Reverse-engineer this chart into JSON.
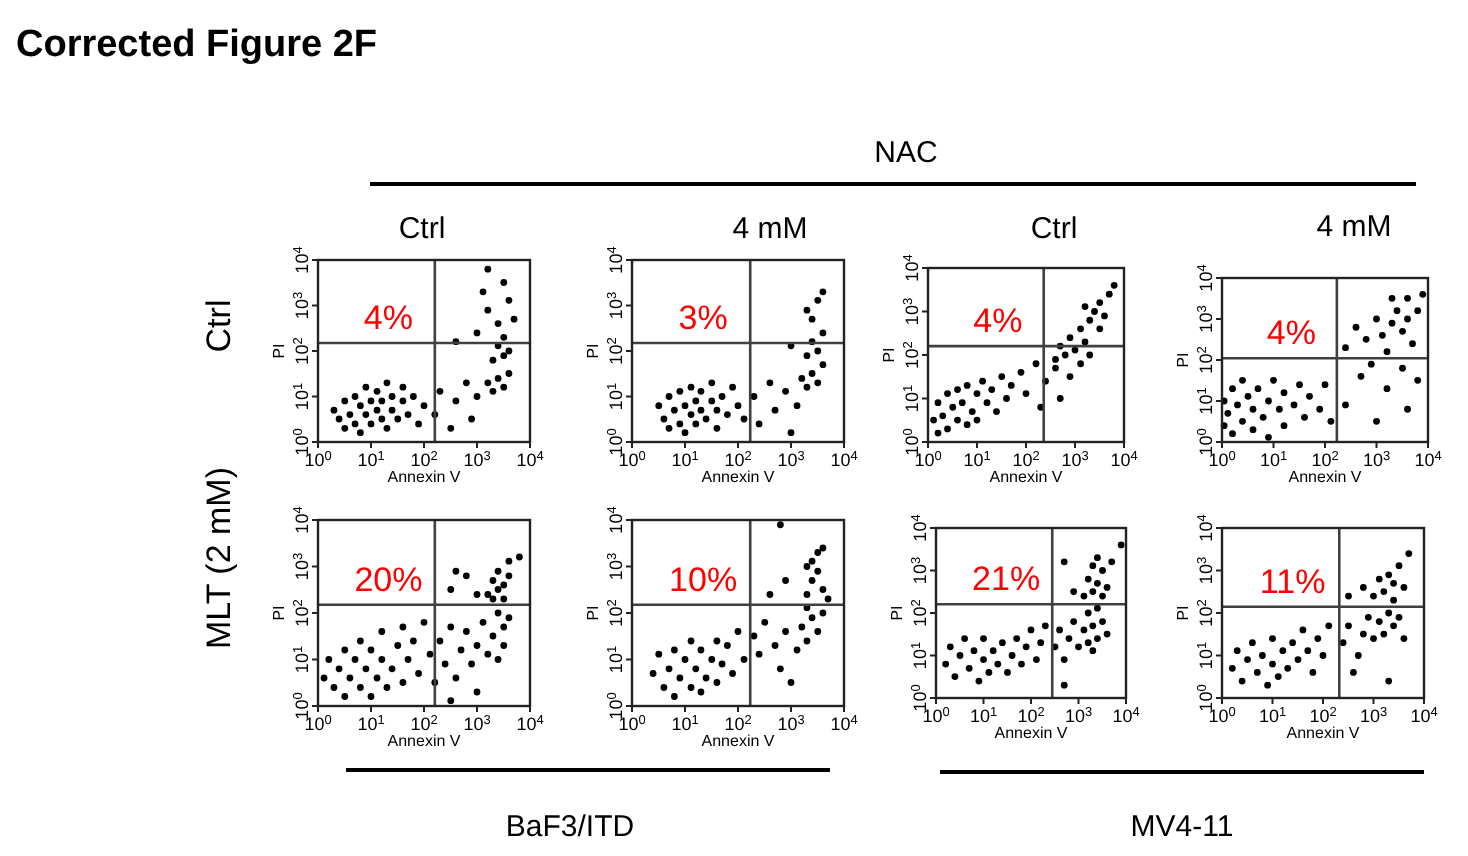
{
  "chart_data": [
    {
      "type": "other",
      "title": "Corrected Figure 2F",
      "annotations": [
        "NAC",
        "Ctrl",
        "4 mM",
        "Ctrl",
        "4 mM",
        "Ctrl",
        "MLT (2 mM)",
        "BaF3/ITD",
        "MV4-11"
      ]
    },
    {
      "type": "scatter",
      "xlabel": "Annexin V",
      "ylabel": "PI",
      "log": "xy",
      "marker": "circle",
      "color": "#000000",
      "xlim": [
        1,
        10000
      ],
      "ylim": [
        1,
        10000
      ],
      "xticks": [
        {
          "value": 1,
          "label": "10$^{0}$"
        },
        {
          "value": 10,
          "label": "10$^{1}$"
        },
        {
          "value": 100,
          "label": "10$^{2}$"
        },
        {
          "value": 1000,
          "label": "10$^{3}$"
        },
        {
          "value": 10000,
          "label": "10$^{4}$"
        }
      ],
      "yticks": [
        {
          "value": 1,
          "label": "10$^{0}$"
        },
        {
          "value": 10,
          "label": "10$^{1}$"
        },
        {
          "value": 100,
          "label": "10$^{2}$"
        },
        {
          "value": 1000,
          "label": "10$^{3}$"
        },
        {
          "value": 10000,
          "label": "10$^{4}$"
        }
      ],
      "ref_lines": [
        {
          "axis": "x",
          "value": 160,
          "color": "#404040"
        },
        {
          "axis": "y",
          "value": 150,
          "color": "#404040"
        }
      ],
      "annotations": [
        "4%"
      ],
      "x": [
        2,
        2.5,
        3.2,
        3.2,
        4,
        5,
        5,
        6.3,
        6.3,
        8,
        8,
        10,
        10,
        13,
        13,
        16,
        16,
        20,
        20,
        25,
        25,
        32,
        40,
        40,
        50,
        63,
        79,
        100,
        160,
        200,
        320,
        400,
        630,
        790,
        1000,
        1600,
        2000,
        2500,
        3200,
        4000,
        2000,
        2500,
        3200,
        3200,
        4000,
        2500,
        1600,
        4000,
        3200,
        1300,
        5000,
        1000,
        400,
        1600
      ],
      "values": [
        5,
        3.2,
        8,
        2,
        4,
        10,
        2.5,
        6.3,
        1.6,
        16,
        4,
        8,
        2.5,
        5,
        13,
        3.2,
        8,
        20,
        2,
        5,
        10,
        3.2,
        8,
        16,
        4,
        10,
        2.5,
        6.3,
        4,
        13,
        2,
        8,
        20,
        3.2,
        10,
        20,
        13,
        25,
        16,
        32,
        63,
        130,
        79,
        200,
        100,
        400,
        790,
        1300,
        3200,
        2000,
        500,
        250,
        160,
        6300
      ]
    },
    {
      "type": "scatter",
      "xlabel": "Annexin V",
      "ylabel": "PI",
      "log": "xy",
      "marker": "circle",
      "color": "#000000",
      "xlim": [
        1,
        10000
      ],
      "ylim": [
        1,
        10000
      ],
      "xticks": [
        {
          "value": 1,
          "label": "10$^{0}$"
        },
        {
          "value": 10,
          "label": "10$^{1}$"
        },
        {
          "value": 100,
          "label": "10$^{2}$"
        },
        {
          "value": 1000,
          "label": "10$^{3}$"
        },
        {
          "value": 10000,
          "label": "10$^{4}$"
        }
      ],
      "yticks": [
        {
          "value": 1,
          "label": "10$^{0}$"
        },
        {
          "value": 10,
          "label": "10$^{1}$"
        },
        {
          "value": 100,
          "label": "10$^{2}$"
        },
        {
          "value": 1000,
          "label": "10$^{3}$"
        },
        {
          "value": 10000,
          "label": "10$^{4}$"
        }
      ],
      "ref_lines": [
        {
          "axis": "x",
          "value": 170,
          "color": "#404040"
        },
        {
          "axis": "y",
          "value": 150,
          "color": "#404040"
        }
      ],
      "annotations": [
        "3%"
      ],
      "x": [
        3.2,
        4,
        5,
        5,
        6.3,
        8,
        8,
        10,
        10,
        13,
        13,
        16,
        16,
        20,
        20,
        25,
        32,
        32,
        40,
        40,
        50,
        63,
        79,
        100,
        130,
        200,
        250,
        400,
        500,
        790,
        1000,
        1300,
        1600,
        2000,
        2500,
        3200,
        4000,
        2000,
        2500,
        3200,
        4000,
        2500,
        3200,
        4000,
        2000,
        1000
      ],
      "values": [
        6.3,
        3.2,
        10,
        2,
        5,
        13,
        2.5,
        6.3,
        1.6,
        16,
        4,
        8,
        2.5,
        5,
        13,
        3.2,
        8,
        20,
        2,
        5,
        10,
        4,
        16,
        6.3,
        3.2,
        10,
        2.5,
        20,
        5,
        13,
        1.6,
        6.3,
        25,
        16,
        32,
        20,
        50,
        79,
        160,
        100,
        250,
        500,
        1300,
        2000,
        790,
        130
      ]
    },
    {
      "type": "scatter",
      "xlabel": "Annexin V",
      "ylabel": "PI",
      "log": "xy",
      "marker": "circle",
      "color": "#000000",
      "xlim": [
        1,
        10000
      ],
      "ylim": [
        1,
        10000
      ],
      "xticks": [
        {
          "value": 1,
          "label": "10$^{0}$"
        },
        {
          "value": 10,
          "label": "10$^{1}$"
        },
        {
          "value": 100,
          "label": "10$^{2}$"
        },
        {
          "value": 1000,
          "label": "10$^{3}$"
        },
        {
          "value": 10000,
          "label": "10$^{4}$"
        }
      ],
      "yticks": [
        {
          "value": 1,
          "label": "10$^{0}$"
        },
        {
          "value": 10,
          "label": "10$^{1}$"
        },
        {
          "value": 100,
          "label": "10$^{2}$"
        },
        {
          "value": 1000,
          "label": "10$^{3}$"
        },
        {
          "value": 10000,
          "label": "10$^{4}$"
        }
      ],
      "ref_lines": [
        {
          "axis": "x",
          "value": 230,
          "color": "#404040"
        },
        {
          "axis": "y",
          "value": 160,
          "color": "#404040"
        }
      ],
      "annotations": [
        "4%"
      ],
      "x": [
        1.3,
        1.6,
        1.6,
        2,
        2.5,
        2.5,
        3.2,
        4,
        4,
        5,
        6.3,
        6.3,
        8,
        10,
        10,
        13,
        16,
        20,
        25,
        32,
        40,
        50,
        79,
        100,
        160,
        200,
        250,
        400,
        500,
        790,
        1300,
        630,
        500,
        790,
        1000,
        1300,
        1600,
        2000,
        2000,
        2500,
        3200,
        3200,
        4000,
        5000,
        6300,
        1600,
        400
      ],
      "values": [
        3.2,
        8,
        1.6,
        4,
        13,
        2,
        6.3,
        3.2,
        16,
        8,
        2.5,
        20,
        5,
        13,
        3.2,
        25,
        8,
        16,
        5,
        32,
        10,
        20,
        40,
        13,
        63,
        6.3,
        25,
        50,
        10,
        32,
        63,
        100,
        160,
        250,
        130,
        400,
        200,
        630,
        100,
        1000,
        400,
        1600,
        790,
        2500,
        4000,
        1300,
        79
      ]
    },
    {
      "type": "scatter",
      "xlabel": "Annexin V",
      "ylabel": "PI",
      "log": "xy",
      "marker": "circle",
      "color": "#000000",
      "xlim": [
        1,
        10000
      ],
      "ylim": [
        1,
        10000
      ],
      "xticks": [
        {
          "value": 1,
          "label": "10$^{0}$"
        },
        {
          "value": 10,
          "label": "10$^{1}$"
        },
        {
          "value": 100,
          "label": "10$^{2}$"
        },
        {
          "value": 1000,
          "label": "10$^{3}$"
        },
        {
          "value": 10000,
          "label": "10$^{4}$"
        }
      ],
      "yticks": [
        {
          "value": 1,
          "label": "10$^{0}$"
        },
        {
          "value": 10,
          "label": "10$^{1}$"
        },
        {
          "value": 100,
          "label": "10$^{2}$"
        },
        {
          "value": 1000,
          "label": "10$^{3}$"
        },
        {
          "value": 10000,
          "label": "10$^{4}$"
        }
      ],
      "ref_lines": [
        {
          "axis": "x",
          "value": 170,
          "color": "#404040"
        },
        {
          "axis": "y",
          "value": 110,
          "color": "#404040"
        }
      ],
      "annotations": [
        "4%"
      ],
      "x": [
        1.1,
        1.1,
        1.3,
        1.6,
        1.6,
        2,
        2.5,
        2.5,
        3.2,
        4,
        4,
        5,
        6.3,
        8,
        8,
        10,
        13,
        16,
        16,
        25,
        32,
        40,
        50,
        79,
        100,
        130,
        250,
        500,
        1000,
        1600,
        3200,
        4000,
        6300,
        790,
        250,
        400,
        630,
        1000,
        1300,
        1600,
        2000,
        2500,
        3200,
        4000,
        4000,
        5000,
        6300,
        7900,
        2000
      ],
      "values": [
        2.5,
        10,
        5,
        20,
        1.6,
        8,
        3.2,
        32,
        13,
        2,
        6.3,
        20,
        4,
        10,
        1.3,
        32,
        6.3,
        2.5,
        16,
        8,
        25,
        4,
        13,
        6.3,
        25,
        3.2,
        8,
        40,
        3.2,
        20,
        63,
        6.3,
        32,
        79,
        200,
        630,
        320,
        1000,
        400,
        160,
        790,
        1600,
        500,
        1000,
        3200,
        250,
        1600,
        4000,
        3200
      ]
    },
    {
      "type": "scatter",
      "xlabel": "Annexin V",
      "ylabel": "PI",
      "log": "xy",
      "marker": "circle",
      "color": "#000000",
      "xlim": [
        1,
        10000
      ],
      "ylim": [
        1,
        10000
      ],
      "xticks": [
        {
          "value": 1,
          "label": "10$^{0}$"
        },
        {
          "value": 10,
          "label": "10$^{1}$"
        },
        {
          "value": 100,
          "label": "10$^{2}$"
        },
        {
          "value": 1000,
          "label": "10$^{3}$"
        },
        {
          "value": 10000,
          "label": "10$^{4}$"
        }
      ],
      "yticks": [
        {
          "value": 1,
          "label": "10$^{0}$"
        },
        {
          "value": 10,
          "label": "10$^{1}$"
        },
        {
          "value": 100,
          "label": "10$^{2}$"
        },
        {
          "value": 1000,
          "label": "10$^{3}$"
        },
        {
          "value": 10000,
          "label": "10$^{4}$"
        }
      ],
      "ref_lines": [
        {
          "axis": "x",
          "value": 160,
          "color": "#404040"
        },
        {
          "axis": "y",
          "value": 150,
          "color": "#404040"
        }
      ],
      "annotations": [
        "20%"
      ],
      "x": [
        1.3,
        1.6,
        2,
        2.5,
        3.2,
        3.2,
        4,
        5,
        6.3,
        6.3,
        8,
        10,
        10,
        13,
        16,
        16,
        20,
        25,
        32,
        40,
        40,
        50,
        63,
        79,
        100,
        130,
        160,
        200,
        250,
        320,
        400,
        500,
        630,
        790,
        1000,
        1300,
        1600,
        2000,
        2500,
        3200,
        3200,
        4000,
        2500,
        1000,
        320,
        1600,
        2000,
        2500,
        2500,
        3200,
        3200,
        4000,
        2000,
        4000,
        320,
        630,
        1000,
        400,
        6300
      ],
      "values": [
        4,
        10,
        2.5,
        6.3,
        16,
        1.6,
        4,
        10,
        2.5,
        25,
        6.3,
        16,
        1.6,
        4,
        10,
        40,
        2.5,
        6.3,
        20,
        3.2,
        50,
        10,
        25,
        5,
        63,
        13,
        3.2,
        25,
        8,
        50,
        4,
        16,
        40,
        8,
        20,
        63,
        13,
        32,
        100,
        50,
        20,
        79,
        10,
        2,
        1.3,
        250,
        500,
        320,
        790,
        200,
        400,
        630,
        200,
        1300,
        320,
        630,
        250,
        790,
        1600
      ]
    },
    {
      "type": "scatter",
      "xlabel": "Annexin V",
      "ylabel": "PI",
      "log": "xy",
      "marker": "circle",
      "color": "#000000",
      "xlim": [
        1,
        10000
      ],
      "ylim": [
        1,
        10000
      ],
      "xticks": [
        {
          "value": 1,
          "label": "10$^{0}$"
        },
        {
          "value": 10,
          "label": "10$^{1}$"
        },
        {
          "value": 100,
          "label": "10$^{2}$"
        },
        {
          "value": 1000,
          "label": "10$^{3}$"
        },
        {
          "value": 10000,
          "label": "10$^{4}$"
        }
      ],
      "yticks": [
        {
          "value": 1,
          "label": "10$^{0}$"
        },
        {
          "value": 10,
          "label": "10$^{1}$"
        },
        {
          "value": 100,
          "label": "10$^{2}$"
        },
        {
          "value": 1000,
          "label": "10$^{3}$"
        },
        {
          "value": 10000,
          "label": "10$^{4}$"
        }
      ],
      "ref_lines": [
        {
          "axis": "x",
          "value": 170,
          "color": "#404040"
        },
        {
          "axis": "y",
          "value": 150,
          "color": "#404040"
        }
      ],
      "annotations": [
        "10%"
      ],
      "x": [
        2.5,
        3.2,
        4,
        5,
        6.3,
        6.3,
        8,
        10,
        13,
        13,
        16,
        20,
        20,
        25,
        32,
        40,
        40,
        50,
        63,
        79,
        100,
        130,
        200,
        250,
        320,
        500,
        630,
        790,
        1300,
        1600,
        2000,
        2500,
        3200,
        4000,
        2000,
        1000,
        2000,
        2500,
        2500,
        3200,
        3200,
        4000,
        2000,
        4000,
        400,
        790,
        5000,
        630
      ],
      "values": [
        5,
        13,
        2.5,
        6.3,
        16,
        1.6,
        4,
        10,
        2.5,
        25,
        6.3,
        16,
        2,
        4,
        10,
        25,
        3.2,
        8,
        20,
        5,
        40,
        10,
        32,
        13,
        63,
        20,
        6.3,
        40,
        16,
        50,
        25,
        79,
        40,
        100,
        130,
        3.2,
        250,
        500,
        1300,
        790,
        2000,
        320,
        1000,
        2500,
        250,
        500,
        200,
        7900
      ]
    },
    {
      "type": "scatter",
      "xlabel": "Annexin V",
      "ylabel": "PI",
      "log": "xy",
      "marker": "circle",
      "color": "#000000",
      "xlim": [
        1,
        10000
      ],
      "ylim": [
        1,
        10000
      ],
      "xticks": [
        {
          "value": 1,
          "label": "10$^{0}$"
        },
        {
          "value": 10,
          "label": "10$^{1}$"
        },
        {
          "value": 100,
          "label": "10$^{2}$"
        },
        {
          "value": 1000,
          "label": "10$^{3}$"
        },
        {
          "value": 10000,
          "label": "10$^{4}$"
        }
      ],
      "yticks": [
        {
          "value": 1,
          "label": "10$^{0}$"
        },
        {
          "value": 10,
          "label": "10$^{1}$"
        },
        {
          "value": 100,
          "label": "10$^{2}$"
        },
        {
          "value": 1000,
          "label": "10$^{3}$"
        },
        {
          "value": 10000,
          "label": "10$^{4}$"
        }
      ],
      "ref_lines": [
        {
          "axis": "x",
          "value": 280,
          "color": "#404040"
        },
        {
          "axis": "y",
          "value": 160,
          "color": "#404040"
        }
      ],
      "annotations": [
        "21%"
      ],
      "x": [
        1.6,
        2,
        2.5,
        3.2,
        4,
        5,
        6.3,
        8,
        10,
        10,
        13,
        16,
        20,
        25,
        32,
        40,
        50,
        63,
        79,
        100,
        130,
        160,
        200,
        320,
        400,
        500,
        630,
        790,
        1000,
        1300,
        1600,
        1600,
        2000,
        2500,
        2500,
        3200,
        4000,
        2000,
        500,
        1300,
        1600,
        2000,
        2000,
        2500,
        3200,
        3200,
        4000,
        5000,
        2500,
        500,
        790,
        7900
      ],
      "values": [
        6.3,
        16,
        3.2,
        10,
        25,
        5,
        13,
        2.5,
        8,
        25,
        4,
        13,
        6.3,
        20,
        4,
        10,
        25,
        6.3,
        16,
        40,
        8,
        20,
        50,
        16,
        40,
        8,
        25,
        63,
        16,
        40,
        20,
        100,
        50,
        25,
        130,
        63,
        32,
        13,
        2,
        250,
        630,
        320,
        1300,
        500,
        250,
        1000,
        400,
        1600,
        2000,
        1600,
        320,
        4000
      ]
    },
    {
      "type": "scatter",
      "xlabel": "Annexin V",
      "ylabel": "PI",
      "log": "xy",
      "marker": "circle",
      "color": "#000000",
      "xlim": [
        1,
        10000
      ],
      "ylim": [
        1,
        10000
      ],
      "xticks": [
        {
          "value": 1,
          "label": "10$^{0}$"
        },
        {
          "value": 10,
          "label": "10$^{1}$"
        },
        {
          "value": 100,
          "label": "10$^{2}$"
        },
        {
          "value": 1000,
          "label": "10$^{3}$"
        },
        {
          "value": 10000,
          "label": "10$^{4}$"
        }
      ],
      "yticks": [
        {
          "value": 1,
          "label": "10$^{0}$"
        },
        {
          "value": 10,
          "label": "10$^{1}$"
        },
        {
          "value": 100,
          "label": "10$^{2}$"
        },
        {
          "value": 1000,
          "label": "10$^{3}$"
        },
        {
          "value": 10000,
          "label": "10$^{4}$"
        }
      ],
      "ref_lines": [
        {
          "axis": "x",
          "value": 210,
          "color": "#404040"
        },
        {
          "axis": "y",
          "value": 140,
          "color": "#404040"
        }
      ],
      "annotations": [
        "11%"
      ],
      "x": [
        1.6,
        2,
        2.5,
        3.2,
        4,
        5,
        6.3,
        8,
        10,
        10,
        13,
        16,
        20,
        25,
        32,
        40,
        50,
        63,
        79,
        100,
        130,
        250,
        320,
        500,
        630,
        790,
        1000,
        1300,
        1600,
        2000,
        2500,
        3200,
        4000,
        2000,
        400,
        1000,
        1300,
        1600,
        2000,
        2500,
        2500,
        3200,
        4000,
        5000,
        630,
        320
      ],
      "values": [
        5,
        13,
        2.5,
        8,
        20,
        4,
        10,
        2,
        6.3,
        25,
        3.2,
        13,
        5,
        20,
        8,
        40,
        13,
        4,
        25,
        10,
        50,
        20,
        50,
        10,
        32,
        79,
        25,
        63,
        32,
        100,
        50,
        79,
        25,
        2.5,
        4,
        250,
        630,
        320,
        790,
        200,
        500,
        1300,
        400,
        2500,
        400,
        250
      ]
    }
  ]
}
